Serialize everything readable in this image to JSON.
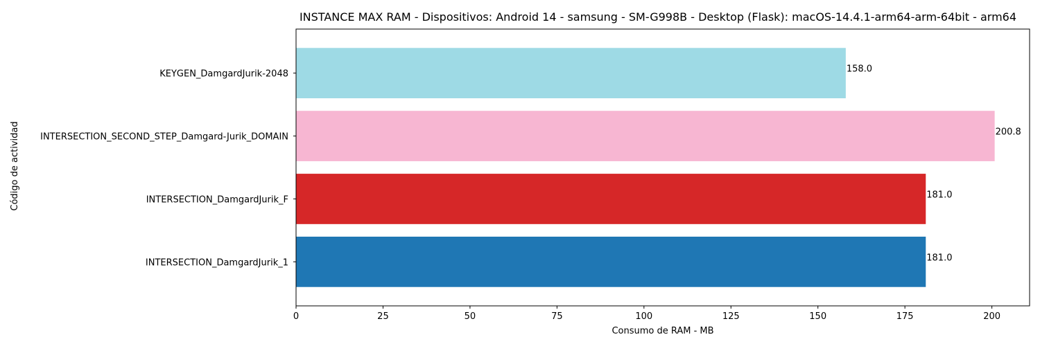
{
  "chart_data": {
    "type": "bar",
    "orientation": "horizontal",
    "title": "INSTANCE MAX RAM - Dispositivos: Android 14 - samsung - SM-G998B - Desktop (Flask): macOS-14.4.1-arm64-arm-64bit - arm64",
    "xlabel": "Consumo de RAM - MB",
    "ylabel": "Código de actividad",
    "categories": [
      "INTERSECTION_DamgardJurik_1",
      "INTERSECTION_DamgardJurik_F",
      "INTERSECTION_SECOND_STEP_Damgard-Jurik_DOMAIN",
      "KEYGEN_DamgardJurik-2048"
    ],
    "values": [
      181.0,
      181.0,
      200.8,
      158.0
    ],
    "data_labels": [
      "181.0",
      "181.0",
      "200.8",
      "158.0"
    ],
    "colors": [
      "#1f77b4",
      "#d62728",
      "#f7b6d2",
      "#9edae5"
    ],
    "xlim": [
      0,
      210.84
    ],
    "xticks": [
      0,
      25,
      50,
      75,
      100,
      125,
      150,
      175,
      200
    ],
    "grid": false,
    "legend": "none"
  }
}
